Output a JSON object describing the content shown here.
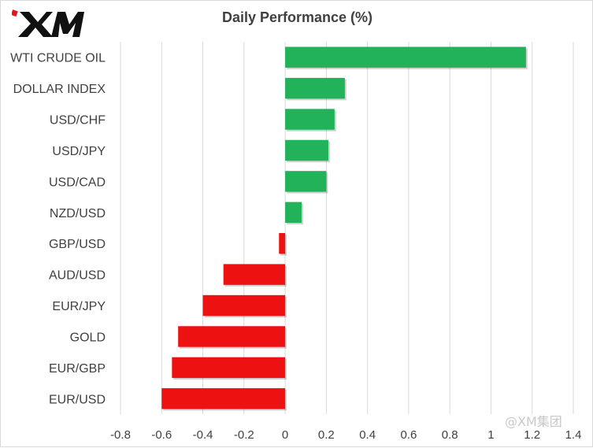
{
  "brand": {
    "logo_text": "XM"
  },
  "watermark": "@XM集团",
  "colors": {
    "positive": "#21b25a",
    "negative": "#ee1111",
    "grid": "#d9d9d9",
    "text": "#404040"
  },
  "chart_data": {
    "type": "bar",
    "orientation": "horizontal",
    "title": "Daily Performance  (%)",
    "xlabel": "",
    "ylabel": "",
    "categories": [
      "WTI CRUDE OIL",
      "DOLLAR INDEX",
      "USD/CHF",
      "USD/JPY",
      "USD/CAD",
      "NZD/USD",
      "GBP/USD",
      "AUD/USD",
      "EUR/JPY",
      "GOLD",
      "EUR/GBP",
      "EUR/USD"
    ],
    "values": [
      1.17,
      0.29,
      0.24,
      0.21,
      0.2,
      0.08,
      -0.03,
      -0.3,
      -0.4,
      -0.52,
      -0.55,
      -0.6
    ],
    "xlim": [
      -0.8,
      1.4
    ],
    "xticks": [
      -0.8,
      -0.6,
      -0.4,
      -0.2,
      0,
      0.2,
      0.4,
      0.6,
      0.8,
      1,
      1.2,
      1.4
    ],
    "grid": "vertical",
    "legend": "none"
  }
}
